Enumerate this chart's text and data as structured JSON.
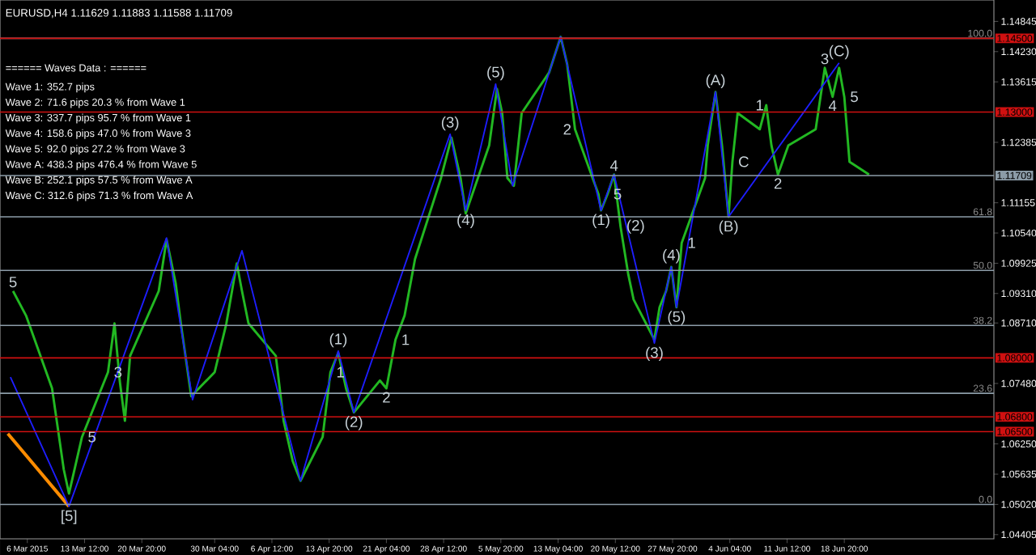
{
  "chart_data": {
    "type": "line",
    "title": "EURUSD,H4  1.11629 1.11883 1.11588 1.11709",
    "xlim": [
      "2015-03-02T16:00",
      "2015-07-08T00:00"
    ],
    "ylim": [
      1.0432,
      1.1528
    ],
    "y2lim": [
      1.0432,
      1.1528
    ],
    "xticks": [
      {
        "value": "2015-03-06T04:00",
        "label": "6 Mar 2015"
      },
      {
        "value": "2015-03-13T12:00",
        "label": "13 Mar 12:00"
      },
      {
        "value": "2015-03-20T20:00",
        "label": "20 Mar 20:00"
      },
      {
        "value": "2015-03-30T04:00",
        "label": "30 Mar 04:00"
      },
      {
        "value": "2015-04-06T12:00",
        "label": "6 Apr 12:00"
      },
      {
        "value": "2015-04-13T20:00",
        "label": "13 Apr 20:00"
      },
      {
        "value": "2015-04-21T04:00",
        "label": "21 Apr 04:00"
      },
      {
        "value": "2015-04-28T12:00",
        "label": "28 Apr 12:00"
      },
      {
        "value": "2015-05-05T20:00",
        "label": "5 May 20:00"
      },
      {
        "value": "2015-05-13T04:00",
        "label": "13 May 04:00"
      },
      {
        "value": "2015-05-20T12:00",
        "label": "20 May 12:00"
      },
      {
        "value": "2015-05-27T20:00",
        "label": "27 May 20:00"
      },
      {
        "value": "2015-06-04T04:00",
        "label": "4 Jun 04:00"
      },
      {
        "value": "2015-06-11T12:00",
        "label": "11 Jun 12:00"
      },
      {
        "value": "2015-06-18T20:00",
        "label": "18 Jun 20:00"
      }
    ],
    "yticks": [
      {
        "value": 1.14845,
        "label": "1.14845"
      },
      {
        "value": 1.1423,
        "label": "1.14230"
      },
      {
        "value": 1.13615,
        "label": "1.13615"
      },
      {
        "value": 1.12385,
        "label": "1.12385"
      },
      {
        "value": 1.11155,
        "label": "1.11155"
      },
      {
        "value": 1.1054,
        "label": "1.10540"
      },
      {
        "value": 1.09925,
        "label": "1.09925"
      },
      {
        "value": 1.0931,
        "label": "1.09310"
      },
      {
        "value": 1.0871,
        "label": "1.08710"
      },
      {
        "value": 1.0748,
        "label": "1.07480"
      },
      {
        "value": 1.0625,
        "label": "1.06250"
      },
      {
        "value": 1.05635,
        "label": "1.05635"
      },
      {
        "value": 1.0502,
        "label": "1.05020"
      },
      {
        "value": 1.04405,
        "label": "1.04405"
      }
    ],
    "series": [
      {
        "color": "#1e1eff",
        "x": [
          "2015-03-04T00:00",
          "2015-03-11T12:00",
          "2015-03-24T00:00",
          "2015-03-27T08:00",
          "2015-04-02T16:00",
          "2015-04-10T04:00",
          "2015-04-15T00:00",
          "2015-04-17T00:00",
          "2015-04-29T08:00",
          "2015-05-01T08:00",
          "2015-05-05T04:00",
          "2015-05-07T08:00",
          "2015-05-13T12:00",
          "2015-05-18T16:00",
          "2015-05-20T08:00",
          "2015-05-25T12:00",
          "2015-05-27T16:00",
          "2015-05-28T08:00",
          "2015-06-02T08:00",
          "2015-06-04T00:00",
          "2015-06-18T04:00"
        ],
        "values": [
          1.0761,
          1.0498,
          1.1044,
          1.0715,
          1.1018,
          1.055,
          1.0814,
          1.0689,
          1.1255,
          1.11,
          1.1357,
          1.115,
          1.1453,
          1.11,
          1.1173,
          1.083,
          1.0985,
          1.0903,
          1.1341,
          1.1087,
          1.14
        ]
      },
      {
        "color": "#22b822",
        "x": [
          "2015-03-04T08:00",
          "2015-03-06T00:00",
          "2015-03-09T08:00",
          "2015-03-10T20:00",
          "2015-03-11T12:00",
          "2015-03-13T04:00",
          "2015-03-16T12:00",
          "2015-03-17T08:00",
          "2015-03-18T00:00",
          "2015-03-18T16:00",
          "2015-03-19T08:00",
          "2015-03-23T00:00",
          "2015-03-24T00:00",
          "2015-03-25T04:00",
          "2015-03-25T20:00",
          "2015-03-27T04:00",
          "2015-03-30T04:00",
          "2015-03-31T16:00",
          "2015-04-02T00:00",
          "2015-04-02T16:00",
          "2015-04-03T12:00",
          "2015-04-07T00:00",
          "2015-04-08T00:00",
          "2015-04-09T04:00",
          "2015-04-10T04:00",
          "2015-04-13T00:00",
          "2015-04-14T00:00",
          "2015-04-15T00:00",
          "2015-04-16T00:00",
          "2015-04-17T00:00",
          "2015-04-20T08:00",
          "2015-04-21T04:00",
          "2015-04-22T08:00",
          "2015-04-23T12:00",
          "2015-04-24T20:00",
          "2015-04-28T04:00",
          "2015-04-29T12:00",
          "2015-04-30T16:00",
          "2015-05-01T08:00",
          "2015-05-04T08:00",
          "2015-05-05T08:00",
          "2015-05-06T00:00",
          "2015-05-06T16:00",
          "2015-05-07T12:00",
          "2015-05-08T12:00",
          "2015-05-12T00:00",
          "2015-05-13T12:00",
          "2015-05-14T08:00",
          "2015-05-15T08:00",
          "2015-05-18T08:00",
          "2015-05-18T16:00",
          "2015-05-19T12:00",
          "2015-05-20T08:00",
          "2015-05-21T04:00",
          "2015-05-22T04:00",
          "2015-05-22T20:00",
          "2015-05-25T12:00",
          "2015-05-26T04:00",
          "2015-05-27T00:00",
          "2015-05-27T16:00",
          "2015-05-28T08:00",
          "2015-05-29T00:00",
          "2015-06-01T00:00",
          "2015-06-01T08:00",
          "2015-06-02T08:00",
          "2015-06-03T04:00",
          "2015-06-04T00:00",
          "2015-06-04T12:00",
          "2015-06-05T04:00",
          "2015-06-08T00:00",
          "2015-06-08T20:00",
          "2015-06-09T12:00",
          "2015-06-10T08:00",
          "2015-06-11T16:00",
          "2015-06-15T04:00",
          "2015-06-16T08:00",
          "2015-06-17T08:00",
          "2015-06-18T04:00",
          "2015-06-18T20:00",
          "2015-06-19T12:00",
          "2015-06-22T00:00"
        ],
        "values": [
          1.0936,
          1.0886,
          1.0738,
          1.0573,
          1.0524,
          1.0639,
          1.0771,
          1.087,
          1.0754,
          1.0672,
          1.0804,
          1.0936,
          1.1041,
          1.0952,
          1.087,
          1.0722,
          1.0771,
          1.087,
          1.0992,
          1.0936,
          1.087,
          1.0804,
          1.0672,
          1.059,
          1.055,
          1.0639,
          1.0771,
          1.081,
          1.0738,
          1.0689,
          1.0754,
          1.0738,
          1.0837,
          1.0886,
          1.1001,
          1.1166,
          1.1248,
          1.1166,
          1.1094,
          1.1232,
          1.1347,
          1.1298,
          1.1166,
          1.115,
          1.1298,
          1.138,
          1.1453,
          1.1397,
          1.1265,
          1.1133,
          1.11,
          1.1133,
          1.1173,
          1.1067,
          1.0969,
          1.0919,
          1.0837,
          1.0903,
          1.0936,
          1.0985,
          1.0903,
          1.1034,
          1.1166,
          1.1232,
          1.1341,
          1.1232,
          1.1087,
          1.1199,
          1.1298,
          1.1265,
          1.1314,
          1.1232,
          1.1173,
          1.1232,
          1.1265,
          1.139,
          1.1331,
          1.139,
          1.1331,
          1.1199,
          1.1173
        ]
      },
      {
        "color": "#ff8c00",
        "x": [
          "2015-03-03T16:00",
          "2015-03-11T12:00"
        ],
        "values": [
          1.0646,
          1.0498
        ]
      }
    ],
    "ref_lines": [
      {
        "axis": "y",
        "value": 1.145,
        "color": "#8c9ca8"
      },
      {
        "axis": "y",
        "value": 1.1087,
        "color": "#8c9ca8"
      },
      {
        "axis": "y",
        "value": 1.0978,
        "color": "#8c9ca8"
      },
      {
        "axis": "y",
        "value": 1.0866,
        "color": "#8c9ca8"
      },
      {
        "axis": "y",
        "value": 1.0728,
        "color": "#8c9ca8"
      },
      {
        "axis": "y",
        "value": 1.0502,
        "color": "#8c9ca8"
      },
      {
        "axis": "y2",
        "value": 1.145,
        "label": "1.14500",
        "color": "#d01010"
      },
      {
        "axis": "y2",
        "value": 1.13,
        "label": "1.13000",
        "color": "#d01010"
      },
      {
        "axis": "y2",
        "value": 1.08,
        "label": "1.08000",
        "color": "#d01010"
      },
      {
        "axis": "y2",
        "value": 1.068,
        "label": "1.06800",
        "color": "#d01010"
      },
      {
        "axis": "y2",
        "value": 1.065,
        "label": "1.06500",
        "color": "#d01010"
      },
      {
        "axis": "y2",
        "value": 1.11709,
        "label": "1.11709",
        "color": "#8c9ca8"
      }
    ],
    "annotations": [
      "====== Waves Data : ======",
      "Wave 1: 352.7 pips",
      "Wave 2: 71.6 pips 20.3 % from Wave 1",
      "Wave 3: 337.7 pips 95.7 % from Wave 1",
      "Wave 4: 158.6 pips 47.0 % from Wave 3",
      "Wave 5: 92.0 pips 27.2 % from Wave 3",
      "Wave A: 438.3 pips 476.4 % from Wave 5",
      "Wave B: 252.1 pips 57.5 % from Wave A",
      "Wave C: 312.6 pips 71.3 % from Wave A",
      {
        "text": "100.0",
        "x": "2015-07-08T00:00",
        "y": 1.145
      },
      {
        "text": "61.8",
        "x": "2015-07-08T00:00",
        "y": 1.1087
      },
      {
        "text": "50.0",
        "x": "2015-07-08T00:00",
        "y": 1.0978
      },
      {
        "text": "38.2",
        "x": "2015-07-08T00:00",
        "y": 1.0866
      },
      {
        "text": "23.6",
        "x": "2015-07-08T00:00",
        "y": 1.0728
      },
      {
        "text": "0.0",
        "x": "2015-07-08T00:00",
        "y": 1.0502
      },
      {
        "text": "5",
        "x": "2015-03-04T08:00",
        "y": 1.0936
      },
      {
        "text": "3",
        "x": "2015-03-16T12:00",
        "y": 1.0771
      },
      {
        "text": "[5]",
        "x": "2015-03-11T12:00",
        "y": 1.0498
      },
      {
        "text": "5",
        "x": "2015-03-13T04:00",
        "y": 1.0639
      },
      {
        "text": "1",
        "x": "2015-04-14T00:00",
        "y": 1.0771
      },
      {
        "text": "(1)",
        "x": "2015-04-15T00:00",
        "y": 1.0814
      },
      {
        "text": "(2)",
        "x": "2015-04-17T00:00",
        "y": 1.0689
      },
      {
        "text": "1",
        "x": "2015-04-22T08:00",
        "y": 1.0837
      },
      {
        "text": "2",
        "x": "2015-04-21T04:00",
        "y": 1.0738
      },
      {
        "text": "(3)",
        "x": "2015-04-29T08:00",
        "y": 1.1255
      },
      {
        "text": "(4)",
        "x": "2015-05-01T08:00",
        "y": 1.11
      },
      {
        "text": "(5)",
        "x": "2015-05-05T04:00",
        "y": 1.1357
      },
      {
        "text": "2",
        "x": "2015-05-14T08:00",
        "y": 1.1265
      },
      {
        "text": "4",
        "x": "2015-05-20T08:00",
        "y": 1.1173
      },
      {
        "text": "(2)",
        "x": "2015-05-21T04:00",
        "y": 1.1067
      },
      {
        "text": "(1)",
        "x": "2015-05-18T16:00",
        "y": 1.11
      },
      {
        "text": "5",
        "x": "2015-05-19T12:00",
        "y": 1.1133
      },
      {
        "text": "(4)",
        "x": "2015-05-27T16:00",
        "y": 1.0985
      },
      {
        "text": "(3)",
        "x": "2015-05-25T12:00",
        "y": 1.083
      },
      {
        "text": "(5)",
        "x": "2015-05-28T08:00",
        "y": 1.0903
      },
      {
        "text": "1",
        "x": "2015-05-29T00:00",
        "y": 1.1034
      },
      {
        "text": "(A)",
        "x": "2015-06-02T08:00",
        "y": 1.1341
      },
      {
        "text": "(B)",
        "x": "2015-06-04T00:00",
        "y": 1.1087
      },
      {
        "text": "C",
        "x": "2015-06-04T12:00",
        "y": 1.1199
      },
      {
        "text": "1",
        "x": "2015-06-08T00:00",
        "y": 1.1314
      },
      {
        "text": "2",
        "x": "2015-06-10T08:00",
        "y": 1.1173
      },
      {
        "text": "3",
        "x": "2015-06-16T08:00",
        "y": 1.139
      },
      {
        "text": "(C)",
        "x": "2015-06-18T04:00",
        "y": 1.14
      },
      {
        "text": "5",
        "x": "2015-06-18T20:00",
        "y": 1.1331
      },
      {
        "text": "4",
        "x": "2015-06-17T08:00",
        "y": 1.1331
      }
    ]
  }
}
